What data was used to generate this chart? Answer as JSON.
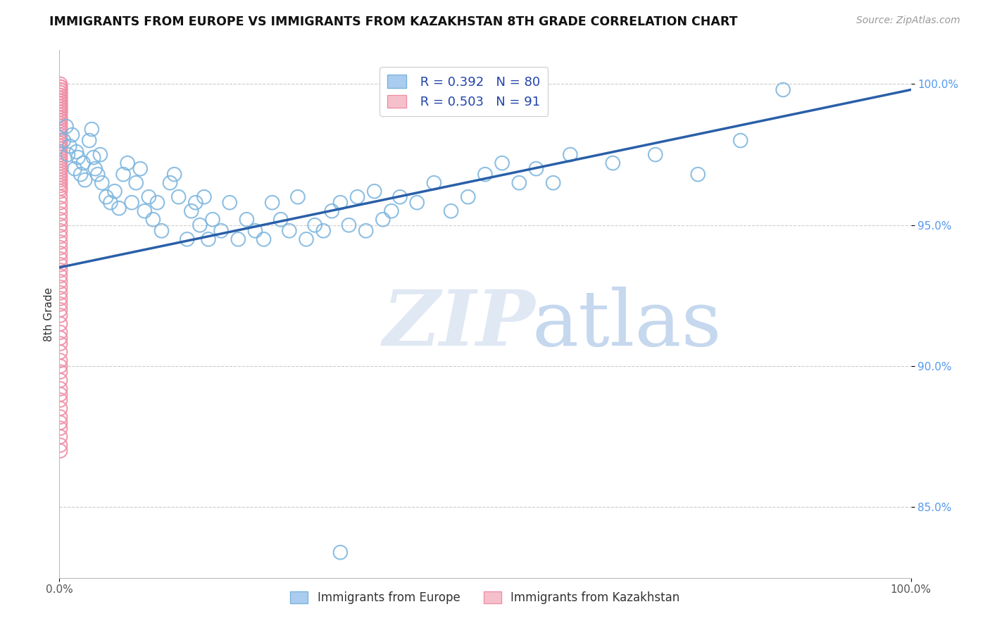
{
  "title": "IMMIGRANTS FROM EUROPE VS IMMIGRANTS FROM KAZAKHSTAN 8TH GRADE CORRELATION CHART",
  "source": "Source: ZipAtlas.com",
  "ylabel": "8th Grade",
  "legend_blue_label": "Immigrants from Europe",
  "legend_pink_label": "Immigrants from Kazakhstan",
  "r_blue": 0.392,
  "n_blue": 80,
  "r_pink": 0.503,
  "n_pink": 91,
  "blue_color": "#7ab4de",
  "pink_color": "#f090a8",
  "trendline_color": "#2a5fa8",
  "xlim": [
    0.0,
    1.0
  ],
  "ylim": [
    0.825,
    1.012
  ],
  "yticks": [
    0.85,
    0.9,
    0.95,
    1.0
  ],
  "ytick_labels": [
    "85.0%",
    "90.0%",
    "95.0%",
    "100.0%"
  ],
  "blue_scatter_x": [
    0.005,
    0.008,
    0.01,
    0.012,
    0.015,
    0.018,
    0.02,
    0.022,
    0.025,
    0.028,
    0.03,
    0.035,
    0.038,
    0.04,
    0.042,
    0.045,
    0.048,
    0.05,
    0.055,
    0.06,
    0.065,
    0.07,
    0.075,
    0.08,
    0.085,
    0.09,
    0.095,
    0.1,
    0.105,
    0.11,
    0.115,
    0.12,
    0.13,
    0.135,
    0.14,
    0.15,
    0.155,
    0.16,
    0.165,
    0.17,
    0.175,
    0.18,
    0.19,
    0.2,
    0.21,
    0.22,
    0.23,
    0.24,
    0.25,
    0.26,
    0.27,
    0.28,
    0.29,
    0.3,
    0.31,
    0.32,
    0.33,
    0.34,
    0.35,
    0.36,
    0.37,
    0.38,
    0.39,
    0.4,
    0.42,
    0.44,
    0.46,
    0.48,
    0.5,
    0.52,
    0.54,
    0.56,
    0.58,
    0.6,
    0.65,
    0.7,
    0.75,
    0.8,
    0.85,
    0.33
  ],
  "blue_scatter_y": [
    0.98,
    0.985,
    0.975,
    0.978,
    0.982,
    0.97,
    0.976,
    0.974,
    0.968,
    0.972,
    0.966,
    0.98,
    0.984,
    0.974,
    0.97,
    0.968,
    0.975,
    0.965,
    0.96,
    0.958,
    0.962,
    0.956,
    0.968,
    0.972,
    0.958,
    0.965,
    0.97,
    0.955,
    0.96,
    0.952,
    0.958,
    0.948,
    0.965,
    0.968,
    0.96,
    0.945,
    0.955,
    0.958,
    0.95,
    0.96,
    0.945,
    0.952,
    0.948,
    0.958,
    0.945,
    0.952,
    0.948,
    0.945,
    0.958,
    0.952,
    0.948,
    0.96,
    0.945,
    0.95,
    0.948,
    0.955,
    0.958,
    0.95,
    0.96,
    0.948,
    0.962,
    0.952,
    0.955,
    0.96,
    0.958,
    0.965,
    0.955,
    0.96,
    0.968,
    0.972,
    0.965,
    0.97,
    0.965,
    0.975,
    0.972,
    0.975,
    0.968,
    0.98,
    0.998,
    0.834
  ],
  "pink_scatter_x": [
    0.001,
    0.001,
    0.001,
    0.001,
    0.001,
    0.001,
    0.001,
    0.001,
    0.001,
    0.001,
    0.001,
    0.001,
    0.001,
    0.001,
    0.001,
    0.001,
    0.001,
    0.001,
    0.001,
    0.001,
    0.001,
    0.001,
    0.001,
    0.001,
    0.001,
    0.001,
    0.001,
    0.001,
    0.001,
    0.001,
    0.001,
    0.001,
    0.001,
    0.001,
    0.001,
    0.001,
    0.001,
    0.001,
    0.001,
    0.001,
    0.001,
    0.001,
    0.001,
    0.001,
    0.001,
    0.001,
    0.001,
    0.001,
    0.001,
    0.001,
    0.001,
    0.001,
    0.001,
    0.001,
    0.001,
    0.001,
    0.001,
    0.001,
    0.001,
    0.001,
    0.001,
    0.001,
    0.001,
    0.001,
    0.001,
    0.001,
    0.001,
    0.001,
    0.001,
    0.001,
    0.001,
    0.001,
    0.001,
    0.001,
    0.001,
    0.001,
    0.001,
    0.001,
    0.001,
    0.001,
    0.001,
    0.001,
    0.001,
    0.001,
    0.001,
    0.001,
    0.001,
    0.001,
    0.001,
    0.001,
    0.001
  ],
  "pink_scatter_y": [
    1.0,
    0.999,
    0.999,
    0.998,
    0.998,
    0.997,
    0.997,
    0.996,
    0.996,
    0.995,
    0.995,
    0.994,
    0.994,
    0.993,
    0.993,
    0.992,
    0.992,
    0.991,
    0.991,
    0.99,
    0.99,
    0.989,
    0.988,
    0.988,
    0.987,
    0.986,
    0.985,
    0.984,
    0.983,
    0.982,
    0.981,
    0.98,
    0.979,
    0.978,
    0.977,
    0.976,
    0.975,
    0.974,
    0.973,
    0.972,
    0.971,
    0.97,
    0.969,
    0.968,
    0.967,
    0.966,
    0.965,
    0.964,
    0.963,
    0.962,
    0.96,
    0.958,
    0.956,
    0.954,
    0.952,
    0.95,
    0.948,
    0.946,
    0.944,
    0.942,
    0.94,
    0.938,
    0.936,
    0.934,
    0.932,
    0.93,
    0.928,
    0.926,
    0.924,
    0.922,
    0.92,
    0.918,
    0.915,
    0.912,
    0.91,
    0.908,
    0.905,
    0.902,
    0.9,
    0.898,
    0.895,
    0.892,
    0.89,
    0.888,
    0.885,
    0.882,
    0.88,
    0.878,
    0.875,
    0.872,
    0.87
  ],
  "trendline_x": [
    0.0,
    1.0
  ],
  "trendline_y_start": 0.935,
  "trendline_y_end": 0.998
}
